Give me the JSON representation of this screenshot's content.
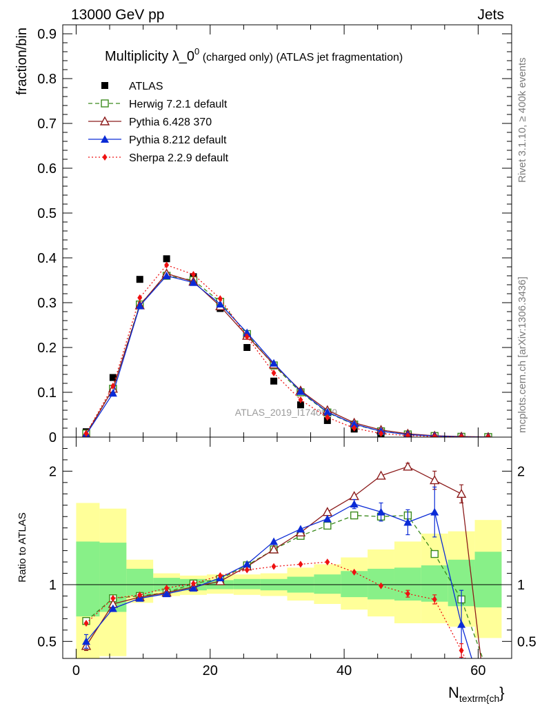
{
  "header": {
    "left": "13000 GeV pp",
    "right": "Jets"
  },
  "side_labels": {
    "rivet": "Rivet 3.1.10, ≥ 400k events",
    "mcplots": "mcplots.cern.ch [arXiv:1306.3436]"
  },
  "watermark": "ATLAS_2019_I1740909",
  "colors": {
    "atlas": "#000000",
    "herwig": "#3a8a1c",
    "pythia6": "#8b1a1a",
    "pythia8": "#0b2bd6",
    "sherpa": "#ee1111",
    "band_green": "#88f088",
    "band_yellow": "#ffff99"
  },
  "chart_data": [
    {
      "id": "main",
      "type": "scatter",
      "title": "Multiplicity λ_0",
      "title_sup": "0",
      "title_suffix": " (charged only) (ATLAS jet fragmentation)",
      "ylabel": "fraction/bin",
      "xlim": [
        -2,
        65
      ],
      "ylim": [
        0,
        0.92
      ],
      "yticks": [
        0,
        0.1,
        0.2,
        0.3,
        0.4,
        0.5,
        0.6,
        0.7,
        0.8,
        0.9
      ],
      "ytick_labels": [
        "0",
        "0.1",
        "0.2",
        "0.3",
        "0.4",
        "0.5",
        "0.6",
        "0.7",
        "0.8",
        "0.9"
      ],
      "legend": [
        {
          "key": "atlas",
          "label": "ATLAS"
        },
        {
          "key": "herwig",
          "label": "Herwig 7.2.1 default"
        },
        {
          "key": "pythia6",
          "label": "Pythia 6.428 370"
        },
        {
          "key": "pythia8",
          "label": "Pythia 8.212 default"
        },
        {
          "key": "sherpa",
          "label": "Sherpa 2.2.9 default"
        }
      ],
      "x": [
        1.5,
        5.5,
        9.5,
        13.5,
        17.5,
        21.5,
        25.5,
        29.5,
        33.5,
        37.5,
        41.5,
        45.5,
        49.5,
        53.5,
        57.5,
        61.5
      ],
      "series": [
        {
          "key": "atlas",
          "name": "ATLAS",
          "marker": "square-filled",
          "values": [
            0.012,
            0.133,
            0.352,
            0.398,
            0.358,
            0.287,
            0.2,
            0.125,
            0.072,
            0.037,
            0.018,
            0.008,
            0.0036,
            0.0016,
            0.0007,
            0.0003
          ]
        },
        {
          "key": "herwig",
          "name": "Herwig 7.2.1 default",
          "marker": "square-open",
          "dash": "6,4",
          "values": [
            0.008,
            0.108,
            0.296,
            0.36,
            0.35,
            0.302,
            0.23,
            0.16,
            0.1,
            0.055,
            0.028,
            0.013,
            0.006,
            0.0025,
            0.0008,
            0.0002
          ]
        },
        {
          "key": "pythia6",
          "name": "Pythia 6.428 370",
          "marker": "triangle-open",
          "dash": "",
          "values": [
            0.006,
            0.108,
            0.294,
            0.365,
            0.347,
            0.292,
            0.226,
            0.162,
            0.104,
            0.06,
            0.032,
            0.016,
            0.0075,
            0.003,
            0.0012,
            0.0003
          ]
        },
        {
          "key": "pythia8",
          "name": "Pythia 8.212 default",
          "marker": "triangle-filled",
          "dash": "",
          "values": [
            0.006,
            0.098,
            0.293,
            0.36,
            0.345,
            0.297,
            0.233,
            0.165,
            0.102,
            0.056,
            0.029,
            0.013,
            0.0055,
            0.0026,
            0.0005,
            0.0001
          ]
        },
        {
          "key": "sherpa",
          "name": "Sherpa 2.2.9 default",
          "marker": "diamond",
          "dash": "2,3",
          "values": [
            0.008,
            0.114,
            0.311,
            0.384,
            0.363,
            0.309,
            0.224,
            0.143,
            0.083,
            0.044,
            0.02,
            0.008,
            0.0033,
            0.0014,
            0.0003,
            0.0001
          ]
        }
      ]
    },
    {
      "id": "ratio",
      "type": "line",
      "ylabel": "Ratio to ATLAS",
      "xlabel": "N",
      "xlabel_sub": "textrm{ch",
      "xlabel_tail": "}",
      "xlim": [
        -2,
        65
      ],
      "ylim": [
        0.35,
        2.3
      ],
      "yticks": [
        0.5,
        1,
        2
      ],
      "ytick_labels": [
        "0.5",
        "1",
        "2"
      ],
      "xticks": [
        0,
        20,
        40,
        60
      ],
      "xtick_labels": [
        "0",
        "20",
        "40",
        "60"
      ],
      "x": [
        1.5,
        5.5,
        9.5,
        13.5,
        17.5,
        21.5,
        25.5,
        29.5,
        33.5,
        37.5,
        41.5,
        45.5,
        49.5,
        53.5,
        57.5
      ],
      "band_edges": [
        0,
        3.5,
        7.5,
        11.5,
        15.5,
        19.5,
        23.5,
        27.5,
        31.5,
        35.5,
        39.5,
        43.5,
        47.5,
        51.5,
        55.5,
        59.5,
        63.5
      ],
      "band_inner": [
        [
          0.72,
          1.38
        ],
        [
          0.76,
          1.37
        ],
        [
          0.9,
          1.14
        ],
        [
          0.94,
          1.06
        ],
        [
          0.95,
          1.05
        ],
        [
          0.96,
          1.04
        ],
        [
          0.96,
          1.05
        ],
        [
          0.95,
          1.05
        ],
        [
          0.93,
          1.07
        ],
        [
          0.92,
          1.09
        ],
        [
          0.89,
          1.12
        ],
        [
          0.87,
          1.14
        ],
        [
          0.86,
          1.15
        ],
        [
          0.85,
          1.17
        ],
        [
          0.81,
          1.22
        ],
        [
          0.8,
          1.29
        ]
      ],
      "band_outer": [
        [
          0.35,
          1.72
        ],
        [
          0.37,
          1.67
        ],
        [
          0.84,
          1.22
        ],
        [
          0.9,
          1.1
        ],
        [
          0.91,
          1.08
        ],
        [
          0.92,
          1.09
        ],
        [
          0.91,
          1.09
        ],
        [
          0.9,
          1.1
        ],
        [
          0.86,
          1.15
        ],
        [
          0.83,
          1.18
        ],
        [
          0.78,
          1.24
        ],
        [
          0.72,
          1.31
        ],
        [
          0.66,
          1.38
        ],
        [
          0.66,
          1.45
        ],
        [
          0.63,
          1.47
        ],
        [
          0.53,
          1.57
        ]
      ],
      "series": [
        {
          "key": "herwig",
          "name": "Herwig 7.2.1 default",
          "marker": "square-open",
          "dash": "6,4",
          "values": [
            0.68,
            0.88,
            0.9,
            0.93,
            1.01,
            1.05,
            1.17,
            1.31,
            1.43,
            1.52,
            1.61,
            1.6,
            1.61,
            1.27,
            0.87
          ],
          "tail": [
            61,
            0.3
          ]
        },
        {
          "key": "pythia6",
          "name": "Pythia 6.428 370",
          "marker": "triangle-open",
          "dash": "",
          "values": [
            0.46,
            0.83,
            0.89,
            0.93,
            0.98,
            1.03,
            1.16,
            1.31,
            1.46,
            1.64,
            1.78,
            1.96,
            2.04,
            1.92,
            1.8
          ],
          "tail": [
            60.5,
            0.3
          ],
          "errors": [
            0.04,
            0,
            0,
            0,
            0,
            0,
            0,
            0,
            0,
            0,
            0,
            0,
            0.03,
            0.08,
            0.08
          ]
        },
        {
          "key": "pythia8",
          "name": "Pythia 8.212 default",
          "marker": "triangle-filled",
          "dash": "",
          "values": [
            0.5,
            0.79,
            0.88,
            0.92,
            0.97,
            1.06,
            1.18,
            1.38,
            1.49,
            1.58,
            1.71,
            1.64,
            1.55,
            1.64,
            0.65
          ],
          "tail": [
            59.3,
            0.3
          ],
          "errors": [
            0.06,
            0,
            0,
            0,
            0,
            0,
            0,
            0,
            0,
            0,
            0.04,
            0.08,
            0.11,
            0.22,
            0.3
          ]
        },
        {
          "key": "sherpa",
          "name": "Sherpa 2.2.9 default",
          "marker": "diamond",
          "dash": "2,3",
          "values": [
            0.66,
            0.88,
            0.91,
            0.97,
            1.01,
            1.08,
            1.13,
            1.16,
            1.18,
            1.2,
            1.11,
            0.99,
            0.92,
            0.87,
            0.42
          ],
          "tail": [
            58.5,
            0.3
          ],
          "errors": [
            0,
            0,
            0,
            0,
            0,
            0,
            0,
            0,
            0,
            0,
            0,
            0,
            0.03,
            0.04,
            0.06
          ]
        }
      ]
    }
  ]
}
